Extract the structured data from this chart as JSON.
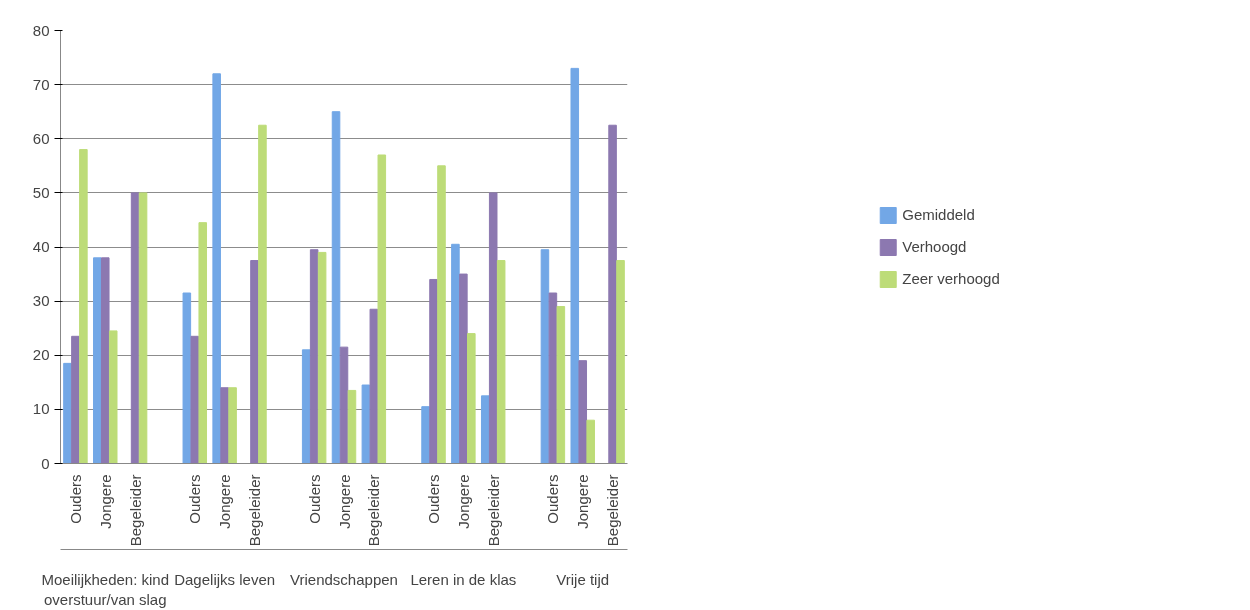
{
  "chart_data": {
    "type": "bar",
    "categories": [
      "Ouders",
      "Jongere",
      "Begeleider",
      null,
      "Ouders",
      "Jongere",
      "Begeleider",
      null,
      "Ouders",
      "Jongere",
      "Begeleider",
      null,
      "Ouders",
      "Jongere",
      "Begeleider",
      null,
      "Ouders",
      "Jongere",
      "Begeleider"
    ],
    "series": [
      {
        "name": "Gemiddeld",
        "color": "#72a7e6",
        "values": [
          18.5,
          38,
          0,
          null,
          31.5,
          72,
          0,
          null,
          21,
          65,
          14.5,
          null,
          10.5,
          40.5,
          12.5,
          null,
          39.5,
          73,
          0
        ]
      },
      {
        "name": "Verhoogd",
        "color": "#8c78b0",
        "values": [
          23.5,
          38,
          50,
          null,
          23.5,
          14,
          37.5,
          null,
          39.5,
          21.5,
          28.5,
          null,
          34,
          35,
          50,
          null,
          31.5,
          19,
          62.5
        ]
      },
      {
        "name": "Zeer verhoogd",
        "color": "#bddc78",
        "values": [
          58,
          24.5,
          50,
          null,
          44.5,
          14,
          62.5,
          null,
          39,
          13.5,
          57,
          null,
          55,
          24,
          37.5,
          null,
          29,
          8,
          37.5
        ]
      }
    ],
    "annotations": [
      "Moeilijkheden: kind\noverstuur/van slag",
      "Dagelijks leven",
      "Vriendschappen",
      "Leren in de klas",
      "Vrije tijd"
    ],
    "ylim": [
      0,
      80
    ],
    "yticks": [
      0,
      10,
      20,
      30,
      40,
      50,
      60,
      70,
      80
    ],
    "grid": "y",
    "legend": "right"
  }
}
